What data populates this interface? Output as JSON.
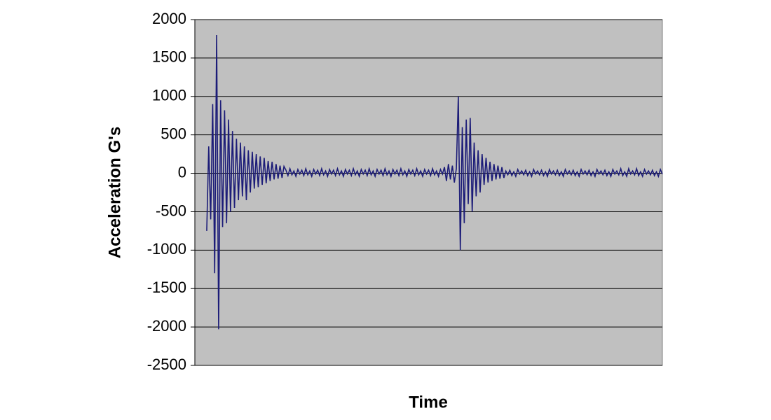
{
  "chart_data": {
    "type": "line",
    "y_label": "Acceleration G's",
    "x_label": "Time",
    "categories": [
      null,
      null,
      null,
      null,
      null,
      null,
      null,
      null,
      null,
      null,
      null,
      null,
      null,
      null,
      null,
      null,
      null,
      null,
      null,
      null,
      null,
      null,
      null,
      null,
      null,
      null,
      null,
      null,
      null,
      null,
      null,
      null,
      null,
      null,
      null,
      null,
      null,
      null,
      null,
      null,
      null,
      null,
      null,
      null,
      null,
      null,
      null,
      null,
      null,
      null,
      null,
      null,
      null,
      null,
      null,
      null,
      null,
      null,
      null,
      null,
      null,
      null,
      null,
      null,
      null,
      null,
      null,
      null,
      null,
      null,
      null,
      null,
      null,
      null,
      null,
      null,
      null,
      null,
      null,
      null,
      null,
      null,
      null,
      null,
      null,
      null,
      null,
      null,
      null,
      null,
      null,
      null,
      null,
      null,
      null,
      null,
      null,
      null,
      null,
      null,
      null,
      null,
      null,
      null,
      null,
      null,
      null,
      null,
      null,
      null,
      null,
      null,
      null,
      null,
      null,
      null,
      null,
      null,
      null,
      null,
      null,
      null,
      null,
      null,
      null,
      null,
      null,
      null,
      null,
      null,
      null,
      null,
      null,
      null,
      null,
      null,
      null,
      null,
      null,
      null,
      null,
      null,
      null,
      null,
      null,
      null,
      null,
      null,
      null,
      null,
      null,
      null,
      null,
      null,
      null,
      null,
      null,
      null,
      null,
      null,
      null,
      null,
      null,
      null,
      null,
      null,
      null,
      null,
      null,
      null,
      null,
      null,
      null,
      null,
      null,
      null,
      null,
      null,
      null,
      null,
      null,
      null,
      null,
      null,
      null,
      null,
      null,
      null,
      null,
      null,
      null,
      null,
      null,
      null,
      null,
      null,
      null,
      null,
      null,
      null,
      null,
      null,
      null,
      null,
      null,
      null,
      null,
      null,
      null,
      null,
      null,
      null,
      null,
      null,
      null,
      null,
      null,
      null,
      null,
      null,
      null,
      null,
      null,
      null,
      null,
      null,
      null,
      null,
      null,
      null,
      null,
      null,
      null,
      null,
      null,
      null,
      null
    ],
    "series": [
      {
        "color": "#1c1c78",
        "values": [
          null,
          null,
          null,
          null,
          null,
          null,
          -750,
          350,
          -600,
          900,
          -1300,
          1800,
          -2030,
          950,
          -700,
          820,
          -650,
          700,
          -500,
          550,
          -450,
          450,
          -350,
          400,
          -300,
          350,
          -350,
          300,
          -250,
          280,
          -200,
          250,
          -180,
          220,
          -150,
          200,
          -130,
          160,
          -100,
          150,
          -80,
          120,
          -70,
          100,
          -60,
          90,
          40,
          -30,
          60,
          -20,
          30,
          -40,
          50,
          -10,
          40,
          -30,
          60,
          -20,
          30,
          -40,
          50,
          -10,
          40,
          -30,
          60,
          -20,
          30,
          -40,
          50,
          -10,
          40,
          -30,
          60,
          -20,
          30,
          -40,
          50,
          -10,
          40,
          -30,
          60,
          -20,
          30,
          -40,
          50,
          -10,
          40,
          -30,
          60,
          -20,
          30,
          -40,
          50,
          -10,
          40,
          -30,
          60,
          -20,
          30,
          -40,
          50,
          -10,
          40,
          -30,
          60,
          -20,
          30,
          -40,
          50,
          -10,
          40,
          -30,
          60,
          -20,
          30,
          -40,
          50,
          -10,
          40,
          -30,
          60,
          -20,
          30,
          -40,
          50,
          -10,
          80,
          -100,
          120,
          -80,
          100,
          -120,
          60,
          1000,
          -1000,
          600,
          -650,
          700,
          -400,
          720,
          -500,
          400,
          -300,
          300,
          -250,
          250,
          -150,
          200,
          -120,
          150,
          -100,
          120,
          -80,
          100,
          -70,
          80,
          -60,
          30,
          -20,
          40,
          -30,
          20,
          -40,
          50,
          -10,
          30,
          -20,
          40,
          -30,
          20,
          -40,
          50,
          -10,
          30,
          -20,
          40,
          -30,
          20,
          -40,
          50,
          -10,
          30,
          -20,
          40,
          -30,
          20,
          -40,
          50,
          -10,
          30,
          -20,
          40,
          -30,
          20,
          -40,
          50,
          -10,
          30,
          -20,
          40,
          -30,
          20,
          -40,
          50,
          -10,
          30,
          -20,
          40,
          -30,
          20,
          -40,
          50,
          -10,
          30,
          -20,
          60,
          -30,
          20,
          -40,
          60,
          -10,
          30,
          -20,
          60,
          -30,
          20,
          -40,
          50,
          -10,
          30,
          -20,
          40,
          -30,
          20,
          -40,
          50,
          -10
        ]
      }
    ],
    "ylim": [
      -2500,
      2000
    ],
    "yticks": [
      -2500,
      -2000,
      -1500,
      -1000,
      -500,
      0,
      500,
      1000,
      1500,
      2000
    ],
    "grid": true,
    "plot_background": "#c0c0c0"
  }
}
